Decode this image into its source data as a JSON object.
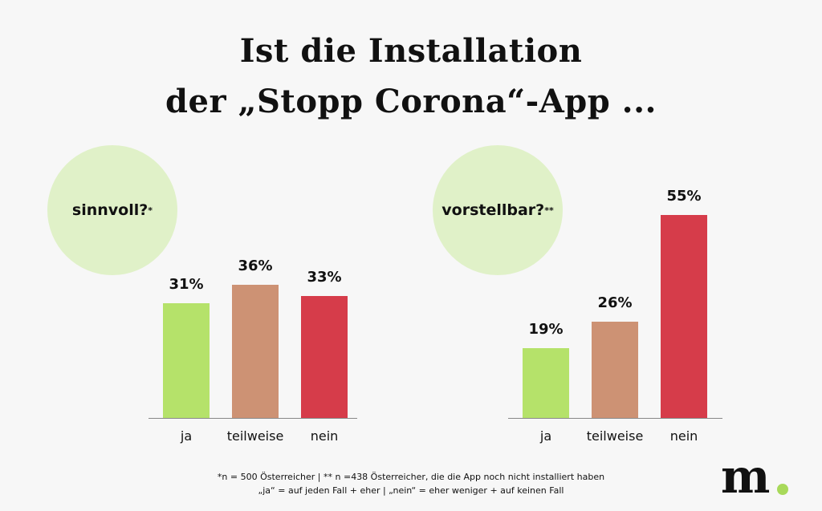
{
  "title_line1": "Ist die Installation",
  "title_line2": "der „Stopp Corona“-App ...",
  "colors": {
    "ja": "#b5e26a",
    "teilweise": "#cd9274",
    "nein": "#d63c4a"
  },
  "chart_data": [
    {
      "type": "bar",
      "title": "sinnvoll?",
      "title_marker": "*",
      "categories": [
        "ja",
        "teilweise",
        "nein"
      ],
      "values": [
        31,
        36,
        33
      ],
      "labels": [
        "31%",
        "36%",
        "33%"
      ],
      "ylim": [
        0,
        100
      ],
      "unit": "%"
    },
    {
      "type": "bar",
      "title": "vorstellbar?",
      "title_marker": "**",
      "categories": [
        "ja",
        "teilweise",
        "nein"
      ],
      "values": [
        19,
        26,
        55
      ],
      "labels": [
        "19%",
        "26%",
        "55%"
      ],
      "ylim": [
        0,
        100
      ],
      "unit": "%"
    }
  ],
  "footnote1": "*n = 500 Österreicher  | ** n =438 Österreicher, die die App noch nicht installiert haben",
  "footnote2": "„ja“ = auf jeden Fall + eher  |  „nein“ = eher weniger + auf keinen Fall",
  "logo_text": "m."
}
